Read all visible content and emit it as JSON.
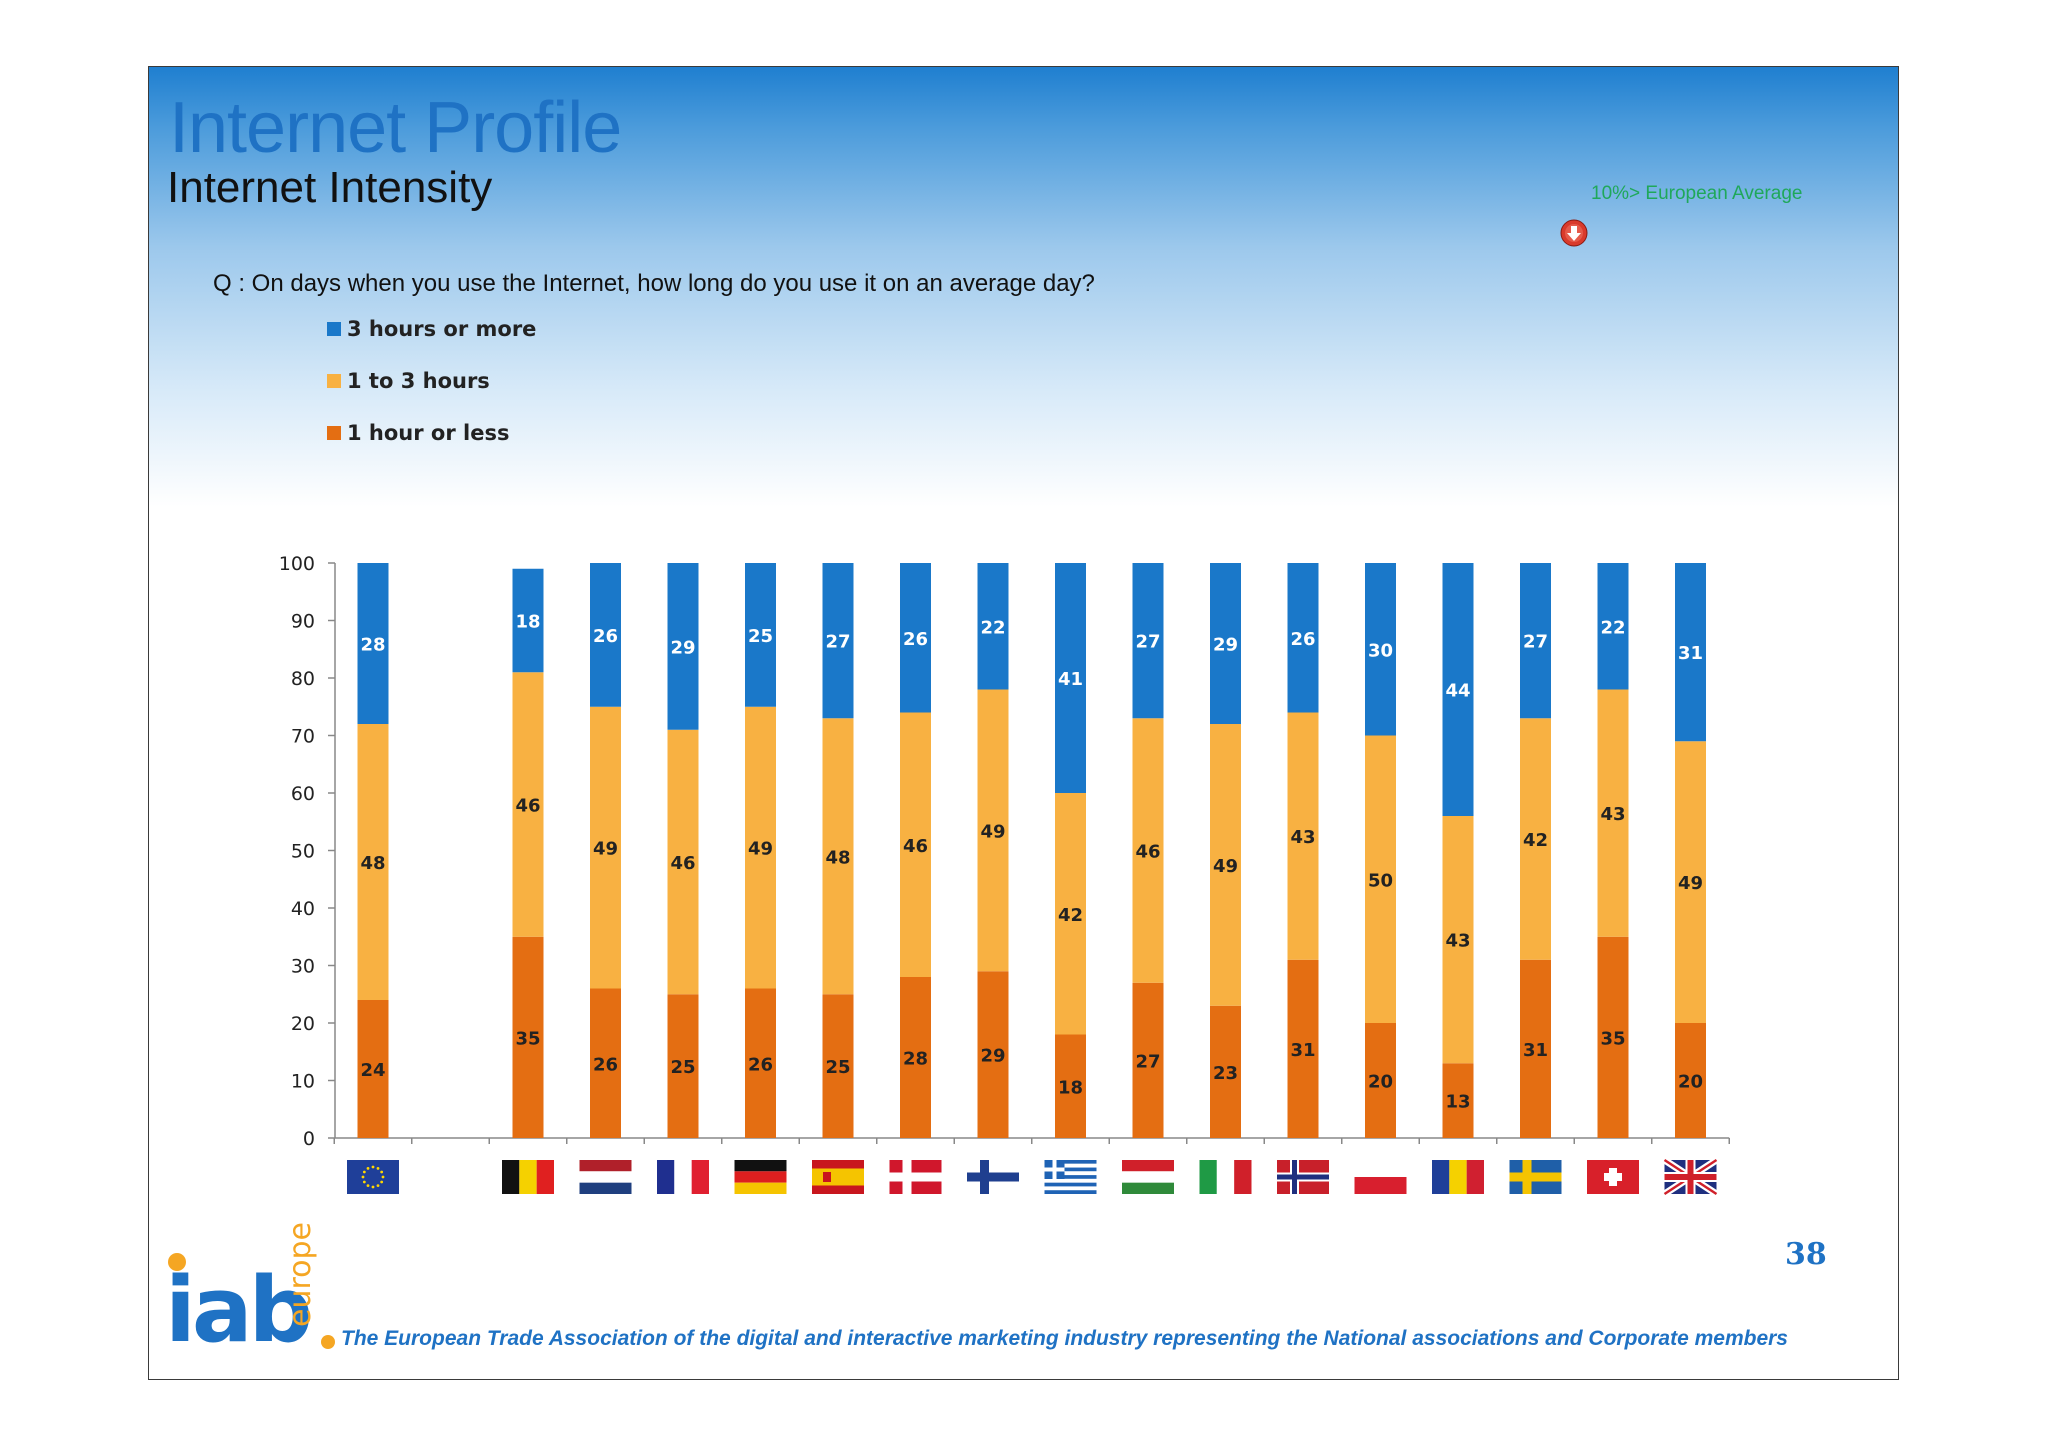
{
  "header": {
    "title": "Internet Profile",
    "subtitle": "Internet Intensity",
    "question": "Q : On days when you use the Internet, how long do you use it on an average day?",
    "average_note": "10%> European Average",
    "average_icon": "red-down-arrow-icon"
  },
  "legend": [
    {
      "label": "3 hours or more",
      "color": "#1a78c9"
    },
    {
      "label": "1 to 3 hours",
      "color": "#f8b142"
    },
    {
      "label": "1 hour or less",
      "color": "#e46e12"
    }
  ],
  "chart_data": {
    "type": "bar",
    "stacked": true,
    "categories": [
      "European Union",
      "",
      "Belgium",
      "Netherlands",
      "France",
      "Germany",
      "Spain",
      "Denmark",
      "Finland",
      "Greece",
      "Hungary",
      "Italy",
      "Norway",
      "Poland",
      "Romania",
      "Sweden",
      "Switzerland",
      "United Kingdom"
    ],
    "category_icons": [
      "eu-flag-icon",
      "",
      "belgium-flag-icon",
      "netherlands-flag-icon",
      "france-flag-icon",
      "germany-flag-icon",
      "spain-flag-icon",
      "denmark-flag-icon",
      "finland-flag-icon",
      "greece-flag-icon",
      "hungary-flag-icon",
      "italy-flag-icon",
      "norway-flag-icon",
      "poland-flag-icon",
      "romania-flag-icon",
      "sweden-flag-icon",
      "switzerland-flag-icon",
      "uk-flag-icon"
    ],
    "series": [
      {
        "name": "1 hour or less",
        "values": [
          24,
          null,
          35,
          26,
          25,
          26,
          25,
          28,
          29,
          18,
          27,
          23,
          31,
          20,
          13,
          31,
          35,
          20
        ]
      },
      {
        "name": "1 to 3 hours",
        "values": [
          48,
          null,
          46,
          49,
          46,
          49,
          48,
          46,
          49,
          42,
          46,
          49,
          43,
          50,
          43,
          42,
          43,
          49
        ]
      },
      {
        "name": "3 hours or more",
        "values": [
          28,
          null,
          18,
          26,
          29,
          25,
          27,
          26,
          22,
          41,
          27,
          29,
          26,
          30,
          44,
          27,
          22,
          31
        ]
      }
    ],
    "ylim": [
      0,
      100
    ],
    "yticks": [
      0,
      10,
      20,
      30,
      40,
      50,
      60,
      70,
      80,
      90,
      100
    ],
    "grid": false,
    "legend_position": "top-left"
  },
  "footer": {
    "page_number": "38",
    "logo_text": "iab",
    "logo_subtext": "europe",
    "tagline": "The European Trade Association of the digital and interactive marketing industry representing the National associations and Corporate members"
  }
}
